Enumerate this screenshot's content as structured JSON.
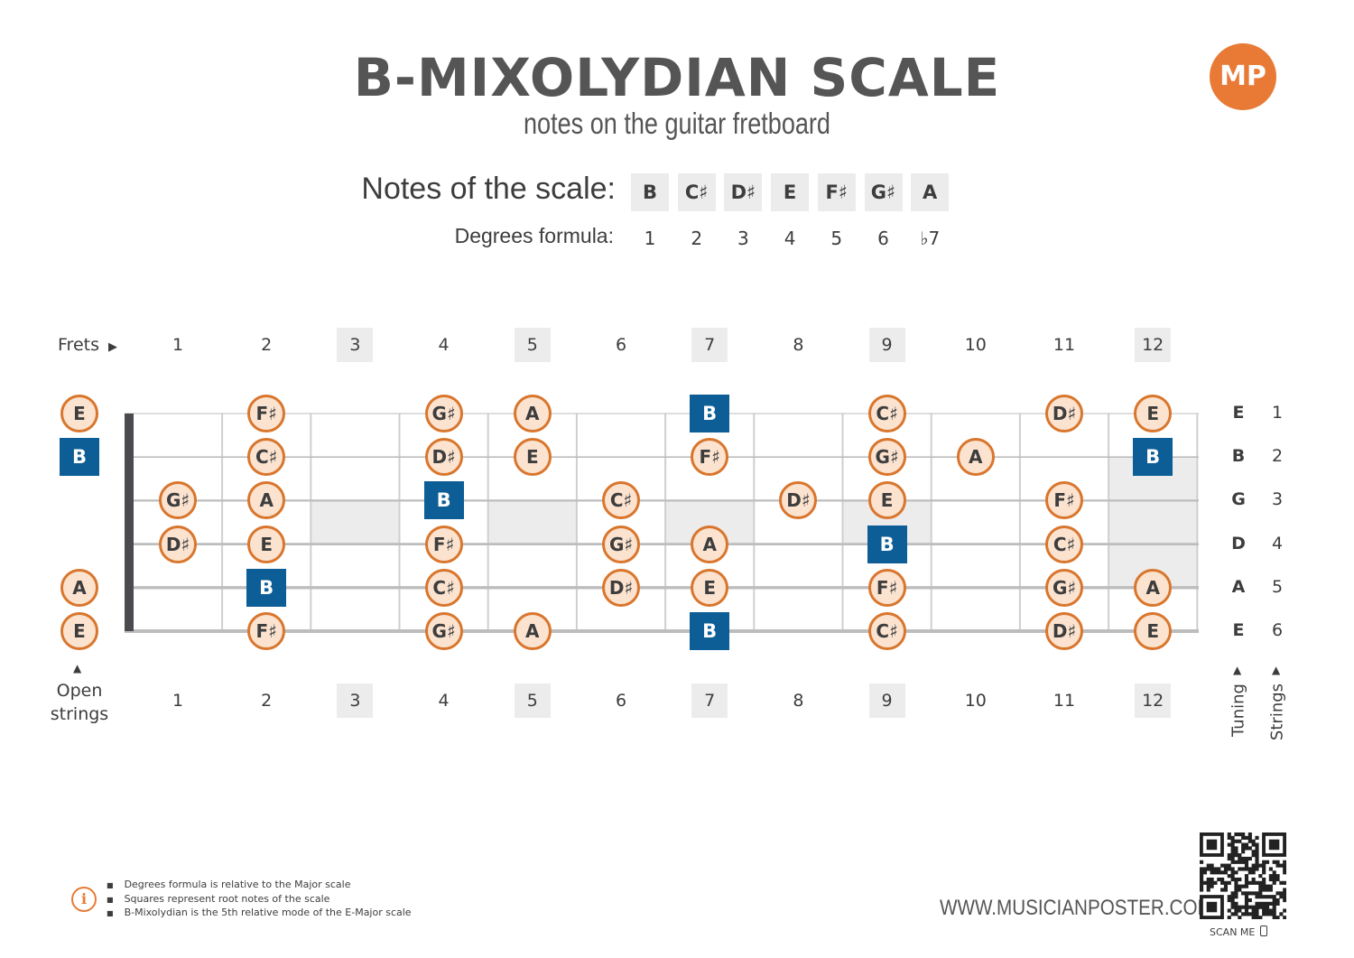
{
  "header": {
    "title": "B-MIXOLYDIAN SCALE",
    "subtitle": "notes on the guitar fretboard",
    "logo_text": "MP"
  },
  "scale": {
    "notes_label": "Notes of the scale:",
    "notes": [
      "B",
      "C♯",
      "D♯",
      "E",
      "F♯",
      "G♯",
      "A"
    ],
    "degrees_label": "Degrees formula:",
    "degrees": [
      "1",
      "2",
      "3",
      "4",
      "5",
      "6",
      "♭7"
    ]
  },
  "fretboard": {
    "frets_label": "Frets",
    "fret_numbers": [
      "1",
      "2",
      "3",
      "4",
      "5",
      "6",
      "7",
      "8",
      "9",
      "10",
      "11",
      "12"
    ],
    "shaded_frets": [
      3,
      5,
      7,
      9,
      12
    ],
    "open_strings_label": "Open strings",
    "tuning_label": "Tuning",
    "strings_label": "Strings",
    "tuning": [
      "E",
      "B",
      "G",
      "D",
      "A",
      "E"
    ],
    "string_numbers": [
      "1",
      "2",
      "3",
      "4",
      "5",
      "6"
    ],
    "positions": [
      {
        "string": 1,
        "fret": 0,
        "note": "E",
        "root": false
      },
      {
        "string": 1,
        "fret": 2,
        "note": "F♯",
        "root": false
      },
      {
        "string": 1,
        "fret": 4,
        "note": "G♯",
        "root": false
      },
      {
        "string": 1,
        "fret": 5,
        "note": "A",
        "root": false
      },
      {
        "string": 1,
        "fret": 7,
        "note": "B",
        "root": true
      },
      {
        "string": 1,
        "fret": 9,
        "note": "C♯",
        "root": false
      },
      {
        "string": 1,
        "fret": 11,
        "note": "D♯",
        "root": false
      },
      {
        "string": 1,
        "fret": 12,
        "note": "E",
        "root": false
      },
      {
        "string": 2,
        "fret": 0,
        "note": "B",
        "root": true
      },
      {
        "string": 2,
        "fret": 2,
        "note": "C♯",
        "root": false
      },
      {
        "string": 2,
        "fret": 4,
        "note": "D♯",
        "root": false
      },
      {
        "string": 2,
        "fret": 5,
        "note": "E",
        "root": false
      },
      {
        "string": 2,
        "fret": 7,
        "note": "F♯",
        "root": false
      },
      {
        "string": 2,
        "fret": 9,
        "note": "G♯",
        "root": false
      },
      {
        "string": 2,
        "fret": 10,
        "note": "A",
        "root": false
      },
      {
        "string": 2,
        "fret": 12,
        "note": "B",
        "root": true
      },
      {
        "string": 3,
        "fret": 1,
        "note": "G♯",
        "root": false
      },
      {
        "string": 3,
        "fret": 2,
        "note": "A",
        "root": false
      },
      {
        "string": 3,
        "fret": 4,
        "note": "B",
        "root": true
      },
      {
        "string": 3,
        "fret": 6,
        "note": "C♯",
        "root": false
      },
      {
        "string": 3,
        "fret": 8,
        "note": "D♯",
        "root": false
      },
      {
        "string": 3,
        "fret": 9,
        "note": "E",
        "root": false
      },
      {
        "string": 3,
        "fret": 11,
        "note": "F♯",
        "root": false
      },
      {
        "string": 4,
        "fret": 1,
        "note": "D♯",
        "root": false
      },
      {
        "string": 4,
        "fret": 2,
        "note": "E",
        "root": false
      },
      {
        "string": 4,
        "fret": 4,
        "note": "F♯",
        "root": false
      },
      {
        "string": 4,
        "fret": 6,
        "note": "G♯",
        "root": false
      },
      {
        "string": 4,
        "fret": 7,
        "note": "A",
        "root": false
      },
      {
        "string": 4,
        "fret": 9,
        "note": "B",
        "root": true
      },
      {
        "string": 4,
        "fret": 11,
        "note": "C♯",
        "root": false
      },
      {
        "string": 5,
        "fret": 0,
        "note": "A",
        "root": false
      },
      {
        "string": 5,
        "fret": 2,
        "note": "B",
        "root": true
      },
      {
        "string": 5,
        "fret": 4,
        "note": "C♯",
        "root": false
      },
      {
        "string": 5,
        "fret": 6,
        "note": "D♯",
        "root": false
      },
      {
        "string": 5,
        "fret": 7,
        "note": "E",
        "root": false
      },
      {
        "string": 5,
        "fret": 9,
        "note": "F♯",
        "root": false
      },
      {
        "string": 5,
        "fret": 11,
        "note": "G♯",
        "root": false
      },
      {
        "string": 5,
        "fret": 12,
        "note": "A",
        "root": false
      },
      {
        "string": 6,
        "fret": 0,
        "note": "E",
        "root": false
      },
      {
        "string": 6,
        "fret": 2,
        "note": "F♯",
        "root": false
      },
      {
        "string": 6,
        "fret": 4,
        "note": "G♯",
        "root": false
      },
      {
        "string": 6,
        "fret": 5,
        "note": "A",
        "root": false
      },
      {
        "string": 6,
        "fret": 7,
        "note": "B",
        "root": true
      },
      {
        "string": 6,
        "fret": 9,
        "note": "C♯",
        "root": false
      },
      {
        "string": 6,
        "fret": 11,
        "note": "D♯",
        "root": false
      },
      {
        "string": 6,
        "fret": 12,
        "note": "E",
        "root": false
      }
    ]
  },
  "footer": {
    "info_icon": "info-icon",
    "notes": [
      "Degrees formula is relative to the Major scale",
      "Squares represent root notes of the scale",
      "B-Mixolydian is the 5th relative mode of the E-Major scale"
    ],
    "website": "WWW.MUSICIANPOSTER.COM",
    "scan_label": "SCAN ME"
  },
  "colors": {
    "accent": "#e87a35",
    "root": "#0d5e96",
    "note_fill": "#fbe3d0",
    "note_border": "#d9762d",
    "shade": "#ececec"
  }
}
